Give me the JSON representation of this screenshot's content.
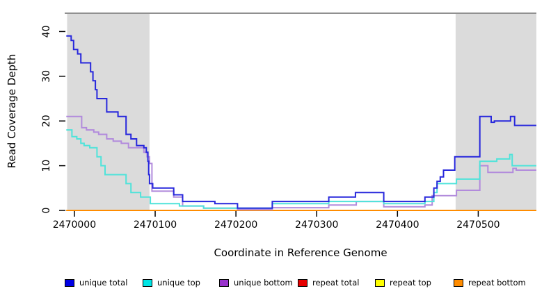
{
  "chart_data": {
    "type": "line",
    "step": true,
    "title": "",
    "xlabel": "Coordinate in Reference Genome",
    "ylabel": "Read Coverage Depth",
    "xlim": [
      2469988,
      2470572
    ],
    "ylim": [
      0,
      44.1
    ],
    "xticks": [
      2470000,
      2470100,
      2470200,
      2470300,
      2470400,
      2470500
    ],
    "yticks": [
      0,
      10,
      20,
      30,
      40
    ],
    "grid": false,
    "legend_position": "bottom",
    "plot_top_border_color": "#909090",
    "shaded_regions": [
      {
        "x1": 2469991,
        "x2": 2470093,
        "color": "#DBDBDB"
      },
      {
        "x1": 2470472,
        "x2": 2470572,
        "color": "#DBDBDB"
      }
    ],
    "series": [
      {
        "name": "repeat total",
        "color": "#E60000",
        "points": [
          [
            2469990,
            0
          ]
        ]
      },
      {
        "name": "repeat top",
        "color": "#FFFF00",
        "points": [
          [
            2469990,
            0
          ]
        ]
      },
      {
        "name": "repeat bottom",
        "color": "#FF8C00",
        "points": [
          [
            2469990,
            0
          ]
        ]
      },
      {
        "name": "unique bottom",
        "color": "#B28BDC",
        "points": [
          [
            2469990,
            21
          ],
          [
            2470009,
            18.5
          ],
          [
            2470015,
            18
          ],
          [
            2470024,
            17.5
          ],
          [
            2470030,
            17
          ],
          [
            2470040,
            16
          ],
          [
            2470048,
            15.5
          ],
          [
            2470058,
            15
          ],
          [
            2470067,
            14
          ],
          [
            2470086,
            13
          ],
          [
            2470090,
            12
          ],
          [
            2470093,
            10.5
          ],
          [
            2470096,
            4.3
          ],
          [
            2470123,
            3
          ],
          [
            2470134,
            1
          ],
          [
            2470160,
            0.5
          ],
          [
            2470202,
            0.2
          ],
          [
            2470245,
            0.6
          ],
          [
            2470315,
            1.2
          ],
          [
            2470349,
            2
          ],
          [
            2470383,
            0.8
          ],
          [
            2470434,
            1.2
          ],
          [
            2470443,
            3.3
          ],
          [
            2470473,
            4.5
          ],
          [
            2470502,
            10
          ],
          [
            2470512,
            8.5
          ],
          [
            2470543,
            9.4
          ],
          [
            2470547,
            9
          ]
        ]
      },
      {
        "name": "unique top",
        "color": "#4FE3DA",
        "points": [
          [
            2469990,
            18
          ],
          [
            2469997,
            16.5
          ],
          [
            2470003,
            16
          ],
          [
            2470008,
            15
          ],
          [
            2470012,
            14.5
          ],
          [
            2470019,
            14
          ],
          [
            2470028,
            12
          ],
          [
            2470033,
            10
          ],
          [
            2470038,
            8
          ],
          [
            2470064,
            6
          ],
          [
            2470070,
            4
          ],
          [
            2470082,
            3
          ],
          [
            2470094,
            1.5
          ],
          [
            2470130,
            1
          ],
          [
            2470160,
            0.5
          ],
          [
            2470245,
            1.5
          ],
          [
            2470315,
            2
          ],
          [
            2470383,
            1.5
          ],
          [
            2470434,
            2
          ],
          [
            2470445,
            4
          ],
          [
            2470449,
            6
          ],
          [
            2470473,
            7
          ],
          [
            2470502,
            11
          ],
          [
            2470523,
            11.5
          ],
          [
            2470539,
            12.5
          ],
          [
            2470542,
            10
          ]
        ]
      },
      {
        "name": "unique total",
        "color": "#2727DC",
        "points": [
          [
            2469990,
            39
          ],
          [
            2469996,
            38
          ],
          [
            2469999,
            36
          ],
          [
            2470004,
            35
          ],
          [
            2470008,
            33
          ],
          [
            2470020,
            31
          ],
          [
            2470023,
            29
          ],
          [
            2470026,
            27
          ],
          [
            2470028,
            25
          ],
          [
            2470040,
            22
          ],
          [
            2470054,
            21
          ],
          [
            2470064,
            17
          ],
          [
            2470070,
            16
          ],
          [
            2470077,
            14.5
          ],
          [
            2470086,
            14
          ],
          [
            2470089,
            13
          ],
          [
            2470091,
            11
          ],
          [
            2470092,
            8
          ],
          [
            2470093,
            6
          ],
          [
            2470097,
            5
          ],
          [
            2470123,
            3.5
          ],
          [
            2470134,
            2
          ],
          [
            2470174,
            1.5
          ],
          [
            2470202,
            0.5
          ],
          [
            2470245,
            2
          ],
          [
            2470315,
            3
          ],
          [
            2470348,
            4
          ],
          [
            2470383,
            2
          ],
          [
            2470434,
            3
          ],
          [
            2470445,
            5
          ],
          [
            2470449,
            6.5
          ],
          [
            2470453,
            7.5
          ],
          [
            2470457,
            9
          ],
          [
            2470471,
            12
          ],
          [
            2470502,
            21
          ],
          [
            2470516,
            19.7
          ],
          [
            2470520,
            20
          ],
          [
            2470540,
            21
          ],
          [
            2470545,
            19
          ]
        ]
      }
    ]
  },
  "legend": {
    "items": [
      {
        "label": "unique total",
        "color": "#0000E6"
      },
      {
        "label": "unique top",
        "color": "#00E5E5"
      },
      {
        "label": "unique bottom",
        "color": "#9932CC"
      },
      {
        "label": "repeat total",
        "color": "#E60000"
      },
      {
        "label": "repeat top",
        "color": "#FFFF00"
      },
      {
        "label": "repeat bottom",
        "color": "#FF8C00"
      }
    ]
  }
}
